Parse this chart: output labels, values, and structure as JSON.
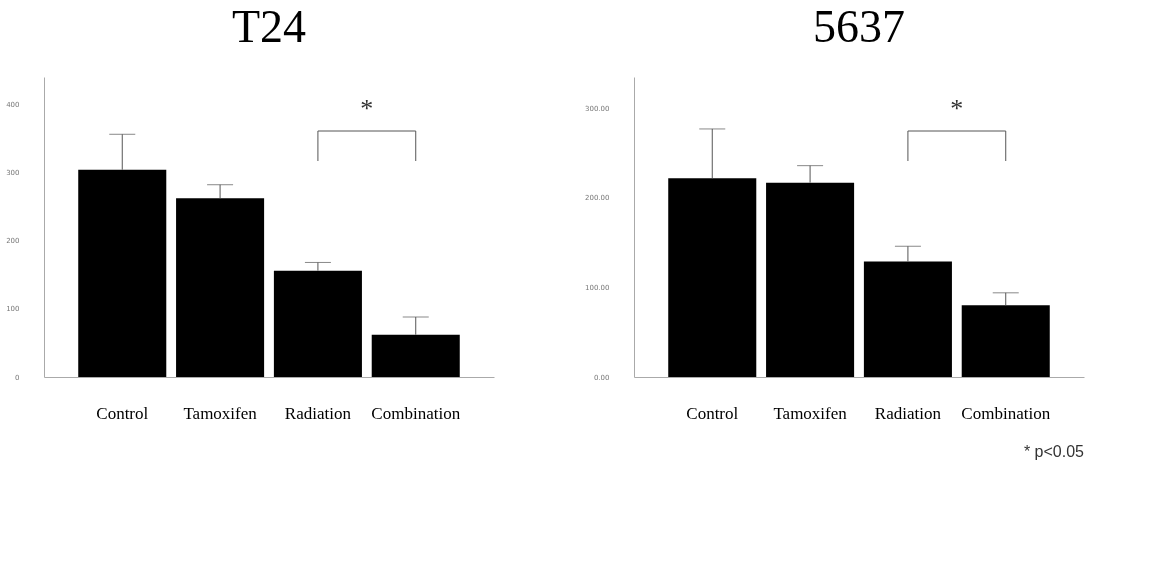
{
  "chart_data": [
    {
      "type": "bar",
      "title": "T24",
      "categories": [
        "Control",
        "Tamoxifen",
        "Radiation",
        "Combination"
      ],
      "values": [
        304,
        262,
        156,
        62
      ],
      "color": "#000000",
      "errors": [
        [
          304,
          356
        ],
        [
          262,
          282
        ],
        [
          156,
          168
        ],
        [
          62,
          88
        ]
      ],
      "ylim": [
        0,
        440
      ],
      "yticks": [
        0,
        100,
        200,
        300,
        400
      ],
      "grid": false,
      "annotations": [
        "*"
      ]
    },
    {
      "type": "bar",
      "title": "5637",
      "categories": [
        "Control",
        "Tamoxifen",
        "Radiation",
        "Combination"
      ],
      "values": [
        222,
        217,
        129,
        80
      ],
      "color": "#000000",
      "errors": [
        [
          222,
          277
        ],
        [
          217,
          236
        ],
        [
          129,
          146
        ],
        [
          80,
          94
        ]
      ],
      "ylim": [
        0,
        335
      ],
      "yticks": [
        {
          "value": 0,
          "label": "0.00"
        },
        {
          "value": 100,
          "label": "100.00"
        },
        {
          "value": 200,
          "label": "200.00"
        },
        {
          "value": 300,
          "label": "300.00"
        }
      ],
      "grid": false,
      "annotations": [
        "*",
        "* p<0.05"
      ]
    }
  ]
}
